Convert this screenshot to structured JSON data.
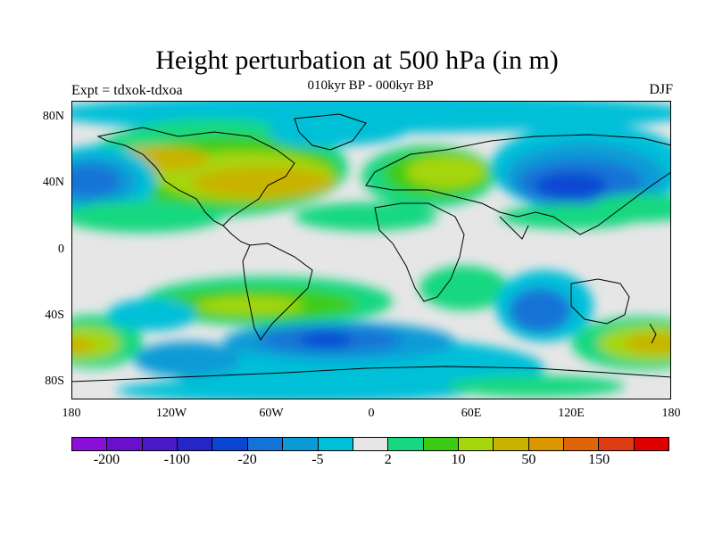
{
  "figure": {
    "title": "Height perturbation at 500 hPa (in m)",
    "subtitle": "010kyr BP - 000kyr BP",
    "left_label": "Expt = tdxok-tdxoa",
    "right_label": "DJF"
  },
  "map": {
    "projection": "cylindrical equidistant",
    "lat_range": [
      -90,
      90
    ],
    "lon_range": [
      -180,
      180
    ],
    "lat_ticks": [
      "80N",
      "40N",
      "0",
      "40S",
      "80S"
    ],
    "lon_ticks": [
      "180",
      "120W",
      "60W",
      "0",
      "60E",
      "120E",
      "180"
    ],
    "background_color": "#e6e6e6",
    "coastline_color": "#000000"
  },
  "colorbar": {
    "colors": [
      "#8a0fd8",
      "#6a10cc",
      "#4b19c8",
      "#2626c8",
      "#0a46d2",
      "#1473d6",
      "#0a9bd6",
      "#00c0d8",
      "#e6e6e6",
      "#17d880",
      "#3ccc14",
      "#a6d60c",
      "#c8b400",
      "#dc9600",
      "#e0640a",
      "#e03c14",
      "#e00000"
    ],
    "labels": [
      "-200",
      "-100",
      "-20",
      "-5",
      "2",
      "10",
      "50",
      "150"
    ]
  }
}
